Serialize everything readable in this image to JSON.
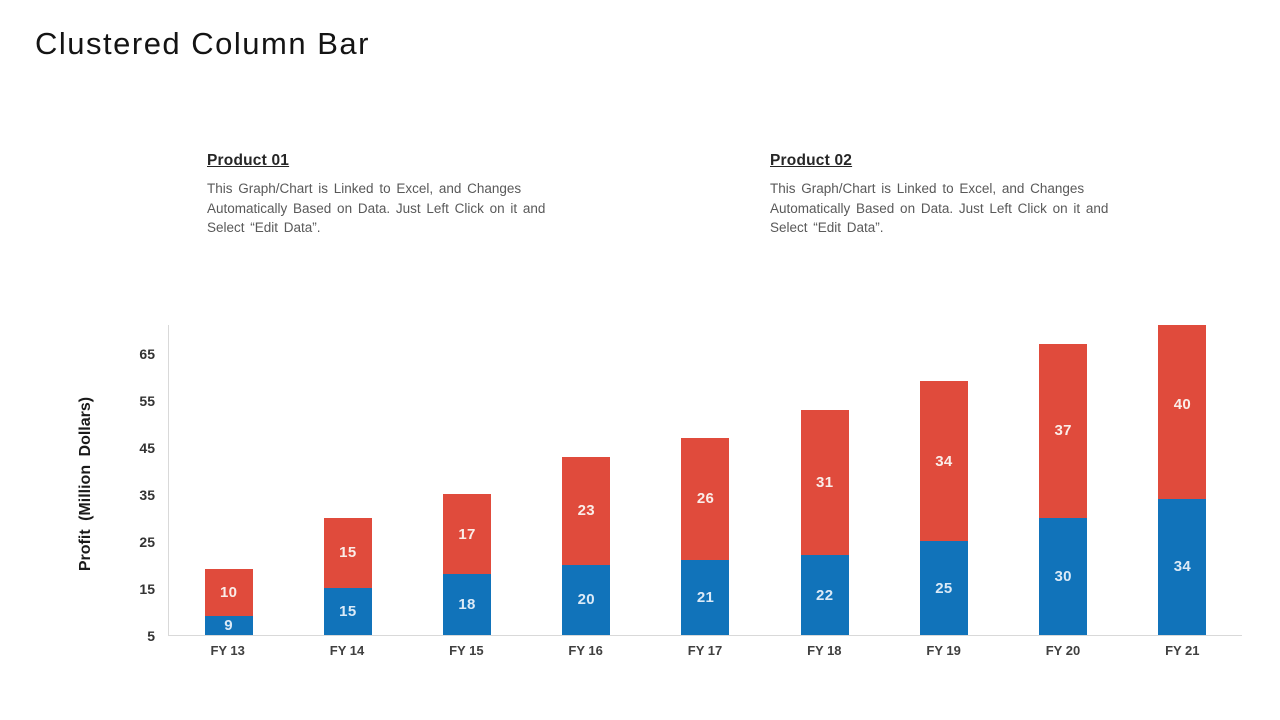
{
  "page": {
    "title": "Clustered Column Bar"
  },
  "notes": [
    {
      "heading": "Product 01",
      "body": "This Graph/Chart is Linked to Excel, and Changes Automatically Based on Data. Just Left Click on it and Select “Edit Data”."
    },
    {
      "heading": "Product 02",
      "body": "This Graph/Chart is Linked to Excel, and Changes Automatically Based on Data. Just Left Click on it and Select “Edit Data”."
    }
  ],
  "chart_data": {
    "type": "bar",
    "stacked": true,
    "title": "",
    "xlabel": "",
    "ylabel": "Profit (Million Dollars)",
    "categories": [
      "FY 13",
      "FY 14",
      "FY 15",
      "FY 16",
      "FY 17",
      "FY 18",
      "FY 19",
      "FY 20",
      "FY 21"
    ],
    "series": [
      {
        "name": "Product 01",
        "color": "#1173BA",
        "label_color": "#DCEAF7",
        "values": [
          9,
          15,
          18,
          20,
          21,
          22,
          25,
          30,
          34
        ]
      },
      {
        "name": "Product 02",
        "color": "#E04B3C",
        "label_color": "#FAEDE9",
        "values": [
          10,
          15,
          17,
          23,
          26,
          31,
          34,
          37,
          40
        ]
      }
    ],
    "totals": [
      19,
      30,
      35,
      43,
      47,
      53,
      59,
      67,
      74
    ],
    "yticks": [
      5,
      15,
      25,
      35,
      45,
      55,
      65
    ],
    "ylim": [
      5,
      71.2
    ],
    "grid": false,
    "legend": "none",
    "axis_line_color": "#D9D9D9"
  }
}
